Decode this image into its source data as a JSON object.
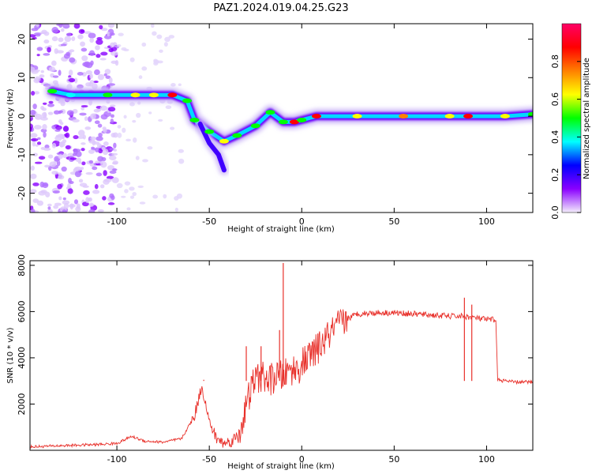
{
  "title": "PAZ1.2024.019.04.25.G23",
  "chart_data": [
    {
      "type": "heatmap",
      "xlabel": "Height of straight line (km)",
      "ylabel": "Frequency (Hz)",
      "xlim": [
        -147,
        125
      ],
      "ylim": [
        -25,
        24
      ],
      "xticks": [
        -100,
        -50,
        0,
        50,
        100
      ],
      "yticks": [
        -20,
        -10,
        0,
        10,
        20
      ],
      "colorbar": {
        "label": "Normalized spectral amplitude",
        "range": [
          0,
          1
        ],
        "ticks": [
          "0.0",
          "0.2",
          "0.4",
          "0.6",
          "0.8"
        ],
        "colors": [
          "#f4eefc",
          "#8a00ff",
          "#0000ff",
          "#00ffff",
          "#00ff00",
          "#ffff00",
          "#ff8000",
          "#ff0000",
          "#ff0066"
        ]
      },
      "ridge": [
        {
          "x": -135,
          "y": 6.5,
          "a": 0.55
        },
        {
          "x": -125,
          "y": 5.5,
          "a": 0.35
        },
        {
          "x": -105,
          "y": 5.5,
          "a": 0.55
        },
        {
          "x": -90,
          "y": 5.5,
          "a": 0.65
        },
        {
          "x": -80,
          "y": 5.5,
          "a": 0.65
        },
        {
          "x": -70,
          "y": 5.5,
          "a": 0.85
        },
        {
          "x": -62,
          "y": 4,
          "a": 0.55
        },
        {
          "x": -58,
          "y": -1,
          "a": 0.5
        },
        {
          "x": -50,
          "y": -4,
          "a": 0.55
        },
        {
          "x": -42,
          "y": -6.5,
          "a": 0.6
        },
        {
          "x": -35,
          "y": -5,
          "a": 0.5
        },
        {
          "x": -25,
          "y": -2.5,
          "a": 0.5
        },
        {
          "x": -17,
          "y": 1,
          "a": 0.45
        },
        {
          "x": -10,
          "y": -1.5,
          "a": 0.55
        },
        {
          "x": -4,
          "y": -1.5,
          "a": 0.85
        },
        {
          "x": 0,
          "y": -1,
          "a": 0.5
        },
        {
          "x": 8,
          "y": 0,
          "a": 0.85
        },
        {
          "x": 30,
          "y": 0,
          "a": 0.65
        },
        {
          "x": 55,
          "y": 0,
          "a": 0.7
        },
        {
          "x": 80,
          "y": 0,
          "a": 0.6
        },
        {
          "x": 90,
          "y": 0,
          "a": 0.85
        },
        {
          "x": 110,
          "y": 0,
          "a": 0.6
        },
        {
          "x": 125,
          "y": 0.5,
          "a": 0.55
        }
      ]
    },
    {
      "type": "line",
      "xlabel": "Height of straight line (km)",
      "ylabel": "SNR (10 * v/v)",
      "xlim": [
        -147,
        125
      ],
      "ylim": [
        0,
        8200
      ],
      "xticks": [
        -100,
        -50,
        0,
        50,
        100
      ],
      "yticks": [
        2000,
        4000,
        6000,
        8000
      ],
      "series": [
        {
          "color": "#e8302a",
          "x": [
            -147,
            -130,
            -110,
            -100,
            -92,
            -85,
            -75,
            -65,
            -58,
            -54,
            -50,
            -46,
            -42,
            -38,
            -34,
            -30,
            -26,
            -22,
            -18,
            -14,
            -10,
            -6,
            -2,
            2,
            6,
            10,
            15,
            20,
            25,
            30,
            40,
            50,
            60,
            70,
            80,
            88,
            92,
            96,
            100,
            105,
            106,
            110,
            115,
            120,
            125
          ],
          "y": [
            150,
            200,
            250,
            300,
            600,
            400,
            350,
            500,
            1500,
            2800,
            1200,
            500,
            300,
            400,
            700,
            1900,
            3000,
            3200,
            3000,
            3200,
            3200,
            3500,
            3500,
            3900,
            4200,
            4500,
            5000,
            5400,
            5700,
            5900,
            5950,
            5950,
            5900,
            5850,
            5800,
            5800,
            5750,
            5700,
            5650,
            5650,
            3050,
            3000,
            2950,
            2950,
            2950
          ]
        }
      ],
      "annotations": [
        {
          "x": -10,
          "y": 8100
        },
        {
          "x": -12,
          "y": 5200
        },
        {
          "x": -22,
          "y": 4500
        },
        {
          "x": -30,
          "y": 4500
        },
        {
          "x": -53,
          "y": 3050
        },
        {
          "x": 88,
          "y": 6600
        },
        {
          "x": 92,
          "y": 6300
        }
      ]
    }
  ]
}
